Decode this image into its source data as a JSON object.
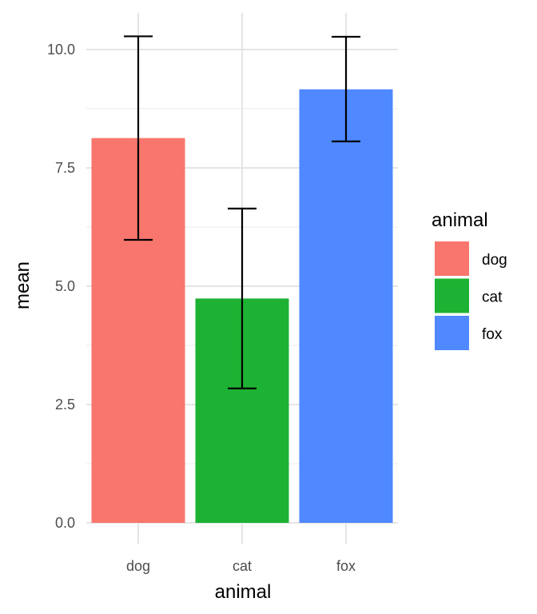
{
  "chart_data": {
    "type": "bar",
    "categories": [
      "dog",
      "cat",
      "fox"
    ],
    "values": [
      8.13,
      4.74,
      9.16
    ],
    "error_bars": [
      {
        "low": 5.98,
        "high": 10.28
      },
      {
        "low": 2.84,
        "high": 6.64
      },
      {
        "low": 8.06,
        "high": 10.27
      }
    ],
    "colors": [
      "#F8766D",
      "#1DB233",
      "#4F88FF"
    ],
    "xlabel": "animal",
    "ylabel": "mean",
    "ylim": [
      0,
      10.5
    ],
    "y_ticks": [
      "0.0",
      "2.5",
      "5.0",
      "7.5",
      "10.0"
    ],
    "y_tick_values": [
      0,
      2.5,
      5,
      7.5,
      10
    ],
    "grid": true,
    "legend": {
      "title": "animal",
      "placement": "right",
      "entries": [
        "dog",
        "cat",
        "fox"
      ]
    }
  }
}
